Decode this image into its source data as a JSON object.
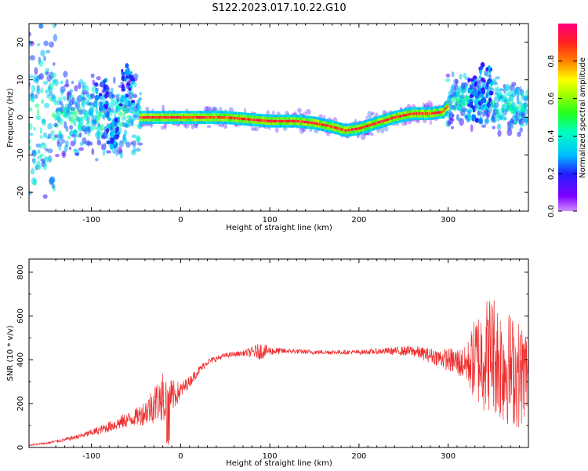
{
  "title": "S122.2023.017.10.22.G10",
  "colors": {
    "snr_line": "#ee2e2e",
    "ridge_hot": "#ff2a2a",
    "background": "#ffffff"
  },
  "chart_data": [
    {
      "type": "heatmap",
      "title": "S122.2023.017.10.22.G10",
      "xlabel": "Height of straight line (km)",
      "ylabel": "Frequency (Hz)",
      "xlim": [
        -170,
        390
      ],
      "ylim": [
        -25,
        25
      ],
      "xticks": [
        -100,
        0,
        100,
        200,
        300
      ],
      "yticks": [
        -20,
        -10,
        0,
        10,
        20
      ],
      "xtick_labels": [
        "-100",
        "0",
        "100",
        "200",
        "300"
      ],
      "ytick_labels": [
        "-20",
        "-10",
        "0",
        "10",
        "20"
      ],
      "colorbar": {
        "label": "Normalized spectral amplitude",
        "range": [
          0,
          1
        ],
        "ticks": [
          0.0,
          0.2,
          0.4,
          0.6,
          0.8
        ],
        "tick_labels": [
          "0.0",
          "0.2",
          "0.4",
          "0.6",
          "0.8"
        ],
        "colormap": "hsv"
      },
      "ridge": {
        "x": [
          -45,
          0,
          50,
          100,
          130,
          150,
          170,
          185,
          200,
          220,
          240,
          260,
          280,
          295,
          300
        ],
        "y": [
          0,
          0,
          0,
          -1,
          -1,
          -1.5,
          -2.5,
          -3.5,
          -3,
          -1.5,
          0,
          1,
          1,
          1.5,
          3
        ]
      },
      "grid": false
    },
    {
      "type": "line",
      "xlabel": "Height of straight line (km)",
      "ylabel": "SNR (10 * v/v)",
      "xlim": [
        -170,
        390
      ],
      "ylim": [
        0,
        860
      ],
      "xticks": [
        -100,
        0,
        100,
        200,
        300
      ],
      "yticks": [
        0,
        200,
        400,
        600,
        800
      ],
      "xtick_labels": [
        "-100",
        "0",
        "100",
        "200",
        "300"
      ],
      "ytick_labels": [
        "0",
        "200",
        "400",
        "600",
        "800"
      ],
      "series": [
        {
          "x": [
            -170,
            -150,
            -130,
            -110,
            -90,
            -70,
            -50,
            -40,
            -30,
            -20,
            -10,
            0,
            10,
            20,
            30,
            50,
            70,
            90,
            100,
            120,
            150,
            180,
            200,
            230,
            260,
            290,
            320,
            330,
            340,
            350,
            360,
            370,
            380,
            390
          ],
          "y": [
            10,
            20,
            35,
            55,
            80,
            110,
            140,
            160,
            200,
            230,
            230,
            260,
            300,
            350,
            390,
            420,
            430,
            440,
            440,
            440,
            435,
            435,
            435,
            440,
            440,
            410,
            380,
            400,
            420,
            440,
            380,
            360,
            330,
            350
          ],
          "noise": [
            3,
            5,
            8,
            12,
            20,
            30,
            40,
            60,
            90,
            110,
            80,
            40,
            25,
            20,
            15,
            12,
            12,
            40,
            20,
            12,
            10,
            10,
            10,
            15,
            25,
            40,
            80,
            200,
            260,
            280,
            280,
            260,
            250,
            200
          ]
        }
      ],
      "grid": false
    }
  ]
}
